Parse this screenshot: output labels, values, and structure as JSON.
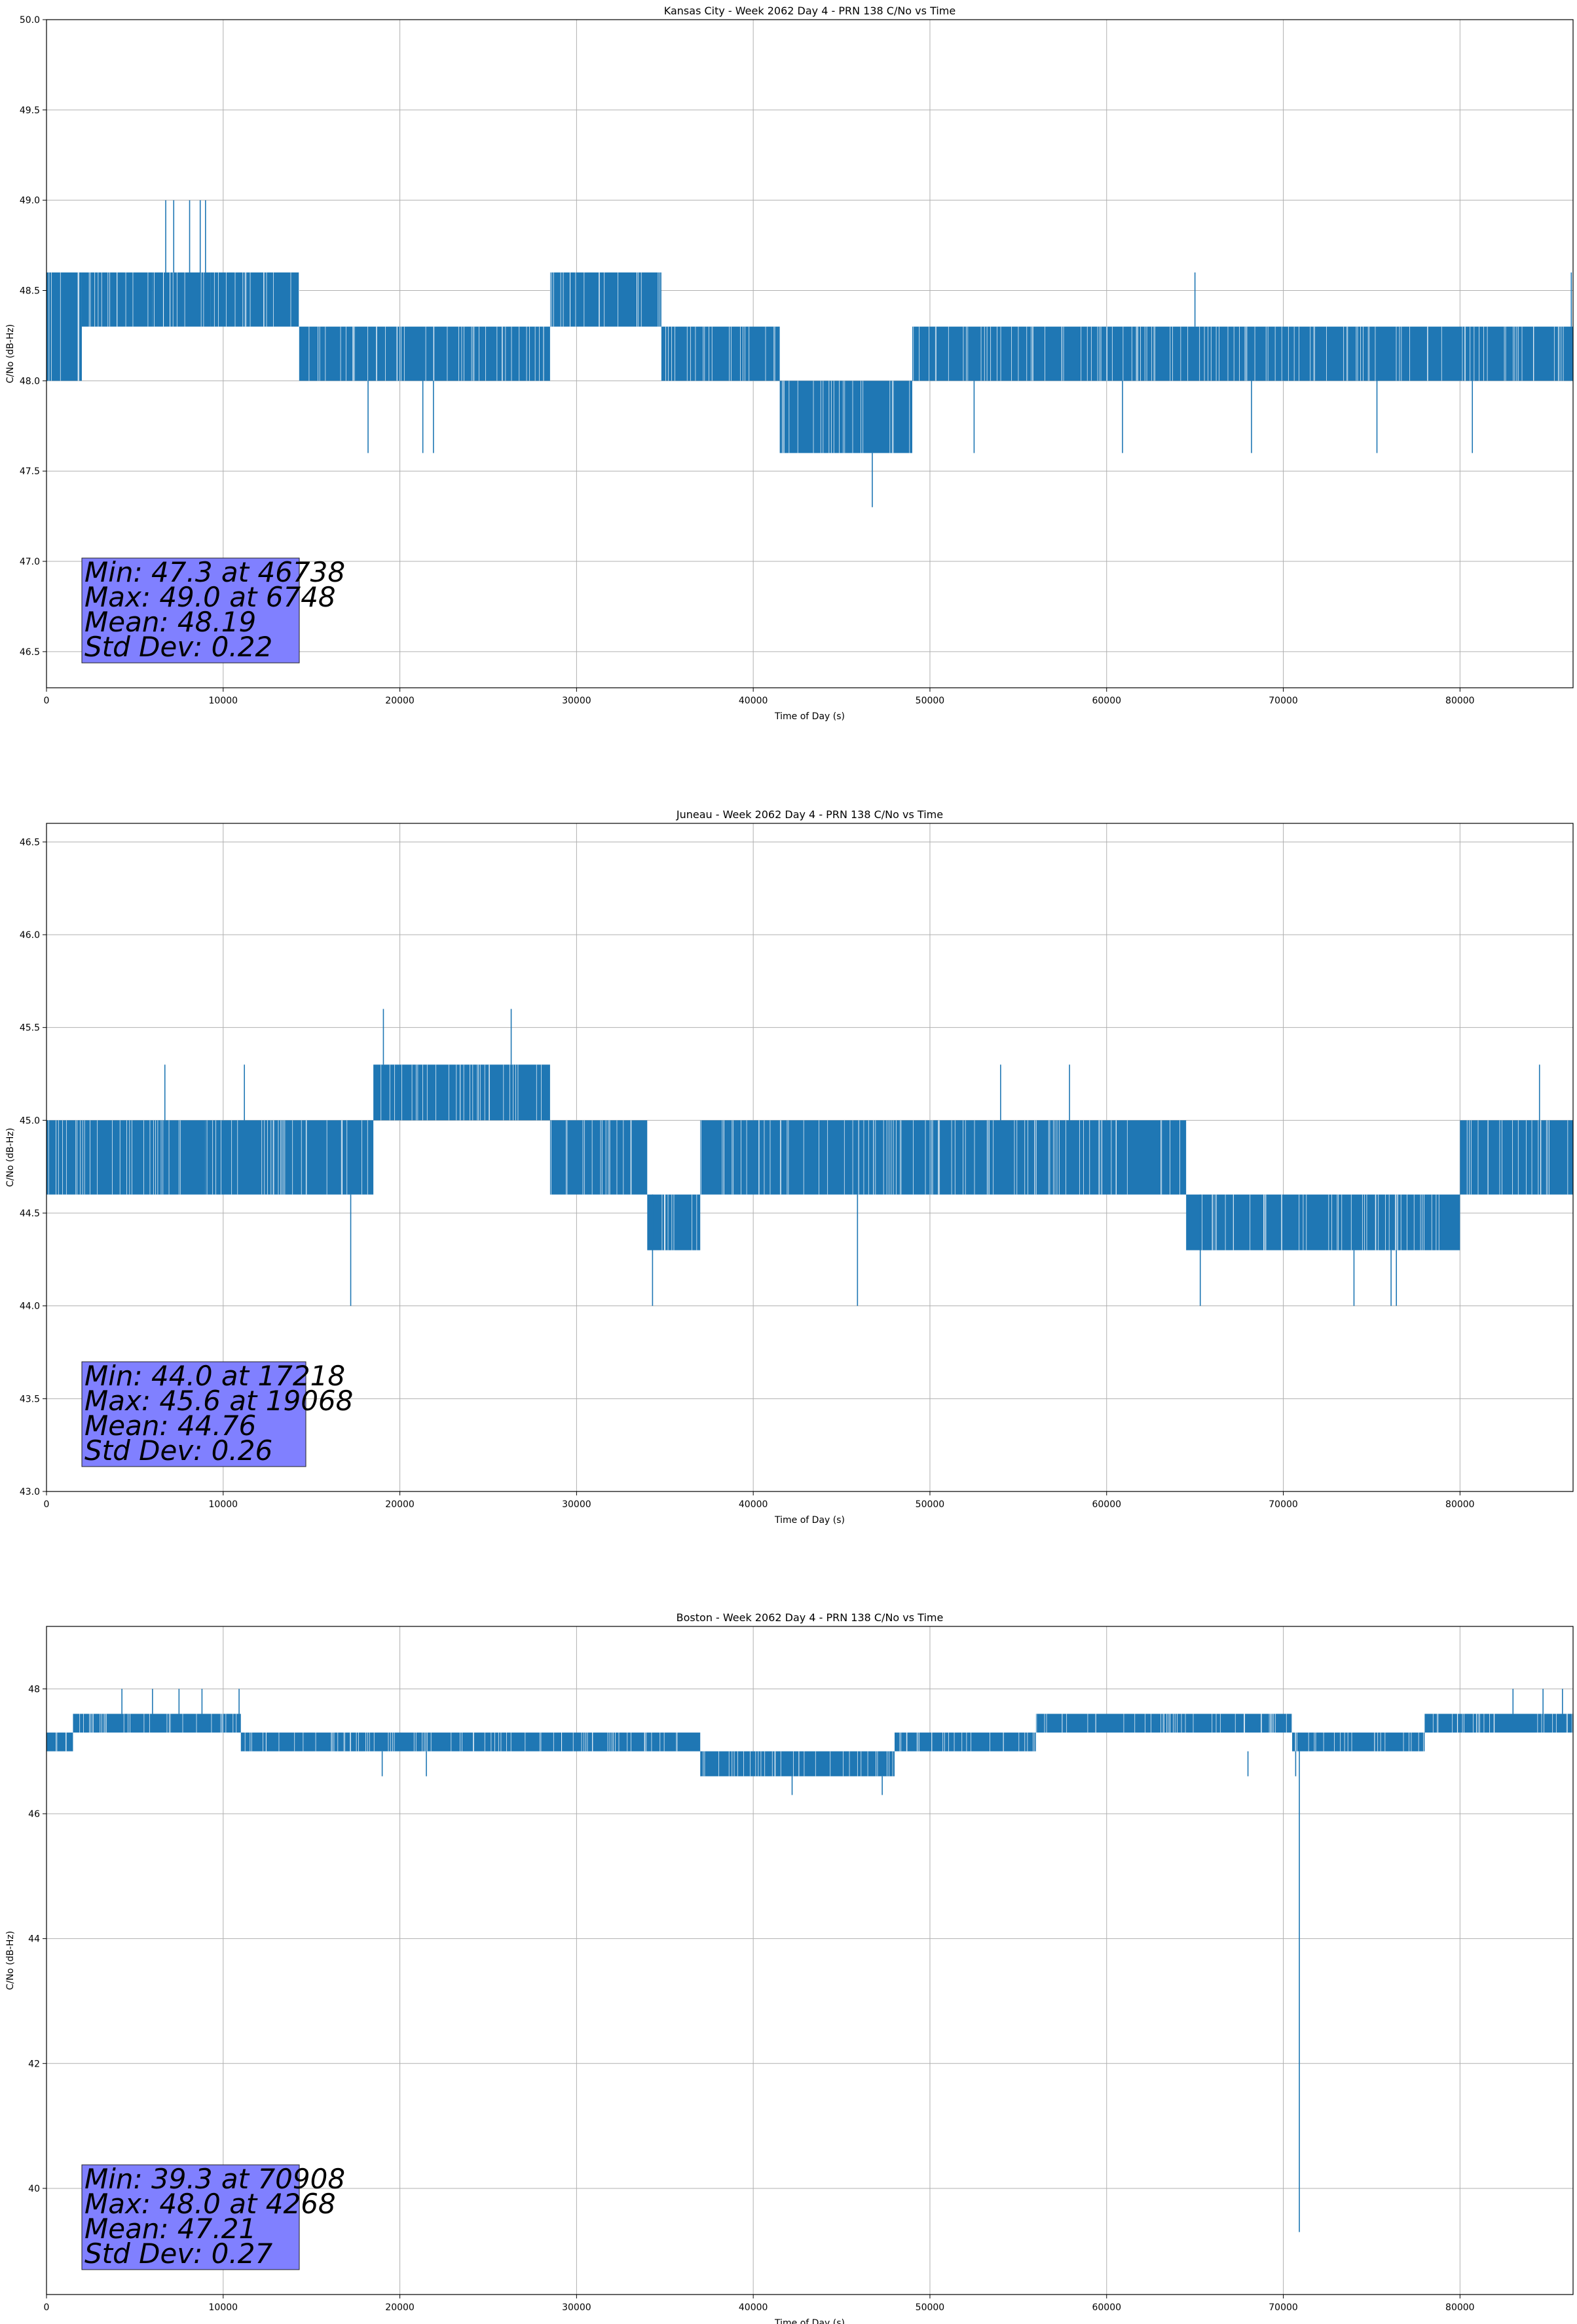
{
  "chart_data": [
    {
      "type": "line",
      "title": "Kansas City - Week 2062 Day 4 - PRN 138 C/No vs Time",
      "xlabel": "Time of Day (s)",
      "ylabel": "C/No (dB-Hz)",
      "xlim": [
        0,
        86400
      ],
      "ylim": [
        46.3,
        50.0
      ],
      "xticks": [
        0,
        10000,
        20000,
        30000,
        40000,
        50000,
        60000,
        70000,
        80000
      ],
      "yticks": [
        46.5,
        47.0,
        47.5,
        48.0,
        48.5,
        49.0,
        49.5,
        50.0
      ],
      "ytick_labels": [
        "46.5",
        "47.0",
        "47.5",
        "48.0",
        "48.5",
        "49.0",
        "49.5",
        "50.0"
      ],
      "grid": true,
      "color": "#1f77b4",
      "stats_box": [
        "Min: 47.3 at 46738",
        "Max: 49.0 at 6748",
        "Mean: 48.19",
        "Std Dev: 0.22"
      ],
      "segments": [
        {
          "x": [
            0,
            2000
          ],
          "range": [
            48.0,
            48.6
          ]
        },
        {
          "x": [
            2000,
            6000
          ],
          "range": [
            48.3,
            48.6
          ]
        },
        {
          "x": [
            6000,
            9300
          ],
          "range": [
            48.3,
            48.6
          ]
        },
        {
          "x": [
            9300,
            14300
          ],
          "range": [
            48.3,
            48.6
          ]
        },
        {
          "x": [
            14300,
            28500
          ],
          "range": [
            48.0,
            48.3
          ]
        },
        {
          "x": [
            28500,
            34800
          ],
          "range": [
            48.3,
            48.6
          ]
        },
        {
          "x": [
            34800,
            41500
          ],
          "range": [
            48.0,
            48.3
          ]
        },
        {
          "x": [
            41500,
            49000
          ],
          "range": [
            47.6,
            48.0
          ]
        },
        {
          "x": [
            49000,
            86400
          ],
          "range": [
            48.0,
            48.3
          ]
        }
      ],
      "spikes": [
        {
          "x": 6748,
          "from": 48.6,
          "to": 49.0
        },
        {
          "x": 7200,
          "from": 48.6,
          "to": 49.0
        },
        {
          "x": 8100,
          "from": 48.6,
          "to": 49.0
        },
        {
          "x": 8700,
          "from": 48.6,
          "to": 49.0
        },
        {
          "x": 9000,
          "from": 48.6,
          "to": 49.0
        },
        {
          "x": 18200,
          "from": 48.0,
          "to": 47.6
        },
        {
          "x": 21300,
          "from": 48.0,
          "to": 47.6
        },
        {
          "x": 21900,
          "from": 48.0,
          "to": 47.6
        },
        {
          "x": 46738,
          "from": 47.6,
          "to": 47.3
        },
        {
          "x": 52500,
          "from": 48.0,
          "to": 47.6
        },
        {
          "x": 60900,
          "from": 48.0,
          "to": 47.6
        },
        {
          "x": 68200,
          "from": 48.0,
          "to": 47.6
        },
        {
          "x": 75300,
          "from": 48.0,
          "to": 47.6
        },
        {
          "x": 80700,
          "from": 48.0,
          "to": 47.6
        },
        {
          "x": 65000,
          "from": 48.3,
          "to": 48.6
        },
        {
          "x": 86300,
          "from": 48.3,
          "to": 48.6
        }
      ]
    },
    {
      "type": "line",
      "title": "Juneau - Week 2062 Day 4 - PRN 138 C/No vs Time",
      "xlabel": "Time of Day (s)",
      "ylabel": "C/No (dB-Hz)",
      "xlim": [
        0,
        86400
      ],
      "ylim": [
        43.0,
        46.6
      ],
      "xticks": [
        0,
        10000,
        20000,
        30000,
        40000,
        50000,
        60000,
        70000,
        80000
      ],
      "yticks": [
        43.0,
        43.5,
        44.0,
        44.5,
        45.0,
        45.5,
        46.0,
        46.5
      ],
      "ytick_labels": [
        "43.0",
        "43.5",
        "44.0",
        "44.5",
        "45.0",
        "45.5",
        "46.0",
        "46.5"
      ],
      "grid": true,
      "color": "#1f77b4",
      "stats_box": [
        "Min: 44.0 at 17218",
        "Max: 45.6 at 19068",
        "Mean: 44.76",
        "Std Dev: 0.26"
      ],
      "segments": [
        {
          "x": [
            0,
            9000
          ],
          "range": [
            44.6,
            45.0
          ]
        },
        {
          "x": [
            9000,
            18500
          ],
          "range": [
            44.6,
            45.0
          ]
        },
        {
          "x": [
            18500,
            28500
          ],
          "range": [
            45.0,
            45.3
          ]
        },
        {
          "x": [
            28500,
            34000
          ],
          "range": [
            44.6,
            45.0
          ]
        },
        {
          "x": [
            34000,
            37000
          ],
          "range": [
            44.3,
            44.6
          ]
        },
        {
          "x": [
            37000,
            64500
          ],
          "range": [
            44.6,
            45.0
          ]
        },
        {
          "x": [
            64500,
            80000
          ],
          "range": [
            44.3,
            44.6
          ]
        },
        {
          "x": [
            80000,
            86400
          ],
          "range": [
            44.6,
            45.0
          ]
        }
      ],
      "spikes": [
        {
          "x": 17218,
          "from": 44.6,
          "to": 44.0
        },
        {
          "x": 19068,
          "from": 45.3,
          "to": 45.6
        },
        {
          "x": 26300,
          "from": 45.3,
          "to": 45.6
        },
        {
          "x": 34300,
          "from": 44.6,
          "to": 44.0
        },
        {
          "x": 45900,
          "from": 44.6,
          "to": 44.0
        },
        {
          "x": 65300,
          "from": 44.6,
          "to": 44.0
        },
        {
          "x": 74000,
          "from": 44.3,
          "to": 44.0
        },
        {
          "x": 76100,
          "from": 44.3,
          "to": 44.0
        },
        {
          "x": 76400,
          "from": 44.3,
          "to": 44.0
        },
        {
          "x": 6700,
          "from": 45.0,
          "to": 45.3
        },
        {
          "x": 11200,
          "from": 45.0,
          "to": 45.3
        },
        {
          "x": 54000,
          "from": 45.0,
          "to": 45.3
        },
        {
          "x": 57900,
          "from": 45.0,
          "to": 45.3
        },
        {
          "x": 84500,
          "from": 45.0,
          "to": 45.3
        }
      ]
    },
    {
      "type": "line",
      "title": "Boston - Week 2062 Day 4 - PRN 138 C/No vs Time",
      "xlabel": "Time of Day (s)",
      "ylabel": "C/No (dB-Hz)",
      "xlim": [
        0,
        86400
      ],
      "ylim": [
        38.3,
        49.0
      ],
      "xticks": [
        0,
        10000,
        20000,
        30000,
        40000,
        50000,
        60000,
        70000,
        80000
      ],
      "yticks": [
        40,
        42,
        44,
        46,
        48
      ],
      "ytick_labels": [
        "40",
        "42",
        "44",
        "46",
        "48"
      ],
      "grid": true,
      "color": "#1f77b4",
      "stats_box": [
        "Min: 39.3 at 70908",
        "Max: 48.0 at 4268",
        "Mean: 47.21",
        "Std Dev: 0.27"
      ],
      "segments": [
        {
          "x": [
            0,
            1500
          ],
          "range": [
            47.0,
            47.3
          ]
        },
        {
          "x": [
            1500,
            11000
          ],
          "range": [
            47.3,
            47.6
          ]
        },
        {
          "x": [
            11000,
            37000
          ],
          "range": [
            47.0,
            47.3
          ]
        },
        {
          "x": [
            37000,
            48000
          ],
          "range": [
            46.6,
            47.0
          ]
        },
        {
          "x": [
            48000,
            56000
          ],
          "range": [
            47.0,
            47.3
          ]
        },
        {
          "x": [
            56000,
            70500
          ],
          "range": [
            47.3,
            47.6
          ]
        },
        {
          "x": [
            70500,
            78000
          ],
          "range": [
            47.0,
            47.3
          ]
        },
        {
          "x": [
            78000,
            86400
          ],
          "range": [
            47.3,
            47.6
          ]
        }
      ],
      "spikes": [
        {
          "x": 4268,
          "from": 47.6,
          "to": 48.0
        },
        {
          "x": 6000,
          "from": 47.6,
          "to": 48.0
        },
        {
          "x": 7500,
          "from": 47.6,
          "to": 48.0
        },
        {
          "x": 8800,
          "from": 47.6,
          "to": 48.0
        },
        {
          "x": 10900,
          "from": 47.6,
          "to": 48.0
        },
        {
          "x": 83000,
          "from": 47.6,
          "to": 48.0
        },
        {
          "x": 84700,
          "from": 47.6,
          "to": 48.0
        },
        {
          "x": 85800,
          "from": 47.6,
          "to": 48.0
        },
        {
          "x": 42200,
          "from": 46.6,
          "to": 46.3
        },
        {
          "x": 47300,
          "from": 46.6,
          "to": 46.3
        },
        {
          "x": 70908,
          "from": 47.0,
          "to": 39.3
        },
        {
          "x": 70700,
          "from": 47.0,
          "to": 46.6
        },
        {
          "x": 19000,
          "from": 47.0,
          "to": 46.6
        },
        {
          "x": 21500,
          "from": 47.0,
          "to": 46.6
        },
        {
          "x": 68000,
          "from": 47.0,
          "to": 46.6
        }
      ]
    }
  ]
}
